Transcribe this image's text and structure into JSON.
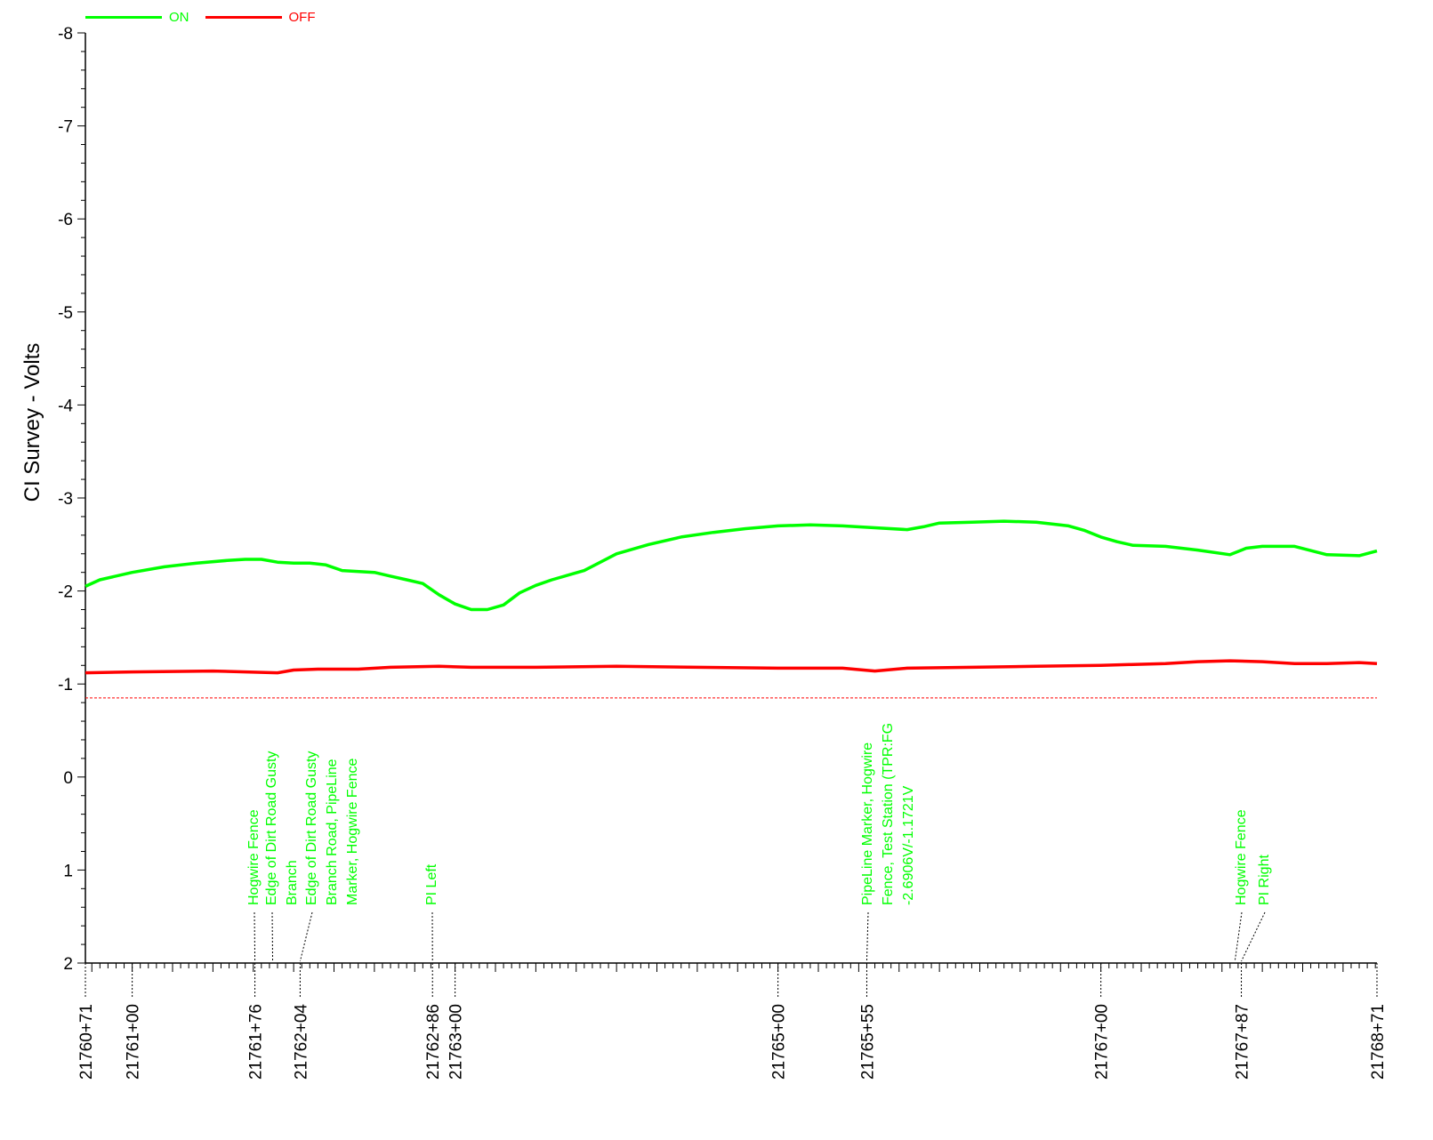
{
  "chart_data": {
    "type": "line",
    "title": "",
    "ylabel": "CI Survey - Volts",
    "xlabel": "",
    "x_unit": "stationing",
    "xlim": [
      2176071,
      2176871
    ],
    "ylim": [
      2,
      -8
    ],
    "y_inverted": true,
    "y_ticks": [
      -8,
      -7,
      -6,
      -5,
      -4,
      -3,
      -2,
      -1,
      0,
      1,
      2
    ],
    "x_tick_labels": [
      {
        "x": 2176071,
        "label": "21760+71"
      },
      {
        "x": 2176100,
        "label": "21761+00"
      },
      {
        "x": 2176176,
        "label": "21761+76"
      },
      {
        "x": 2176204,
        "label": "21762+04"
      },
      {
        "x": 2176286,
        "label": "21762+86"
      },
      {
        "x": 2176300,
        "label": "21763+00"
      },
      {
        "x": 2176500,
        "label": "21765+00"
      },
      {
        "x": 2176555,
        "label": "21765+55"
      },
      {
        "x": 2176700,
        "label": "21767+00"
      },
      {
        "x": 2176787,
        "label": "21767+87"
      },
      {
        "x": 2176871,
        "label": "21768+71"
      }
    ],
    "legend": {
      "placement": "top-left"
    },
    "criteria_line": {
      "y": -0.85,
      "color": "#ff0000",
      "style": "dashed"
    },
    "series": [
      {
        "name": "ON",
        "color": "#00ff00",
        "x": [
          2176071,
          2176080,
          2176100,
          2176120,
          2176140,
          2176160,
          2176170,
          2176180,
          2176190,
          2176200,
          2176210,
          2176220,
          2176230,
          2176250,
          2176260,
          2176270,
          2176280,
          2176290,
          2176300,
          2176310,
          2176320,
          2176330,
          2176340,
          2176350,
          2176360,
          2176380,
          2176400,
          2176420,
          2176440,
          2176460,
          2176480,
          2176500,
          2176520,
          2176540,
          2176560,
          2176580,
          2176590,
          2176600,
          2176620,
          2176640,
          2176660,
          2176680,
          2176690,
          2176700,
          2176710,
          2176720,
          2176740,
          2176760,
          2176780,
          2176790,
          2176800,
          2176820,
          2176840,
          2176860,
          2176871
        ],
        "y": [
          -2.05,
          -2.12,
          -2.2,
          -2.26,
          -2.3,
          -2.33,
          -2.34,
          -2.34,
          -2.31,
          -2.3,
          -2.3,
          -2.28,
          -2.22,
          -2.2,
          -2.16,
          -2.12,
          -2.08,
          -1.96,
          -1.86,
          -1.8,
          -1.8,
          -1.85,
          -1.98,
          -2.06,
          -2.12,
          -2.22,
          -2.4,
          -2.5,
          -2.58,
          -2.63,
          -2.67,
          -2.7,
          -2.71,
          -2.7,
          -2.68,
          -2.66,
          -2.69,
          -2.73,
          -2.74,
          -2.75,
          -2.74,
          -2.7,
          -2.65,
          -2.58,
          -2.53,
          -2.49,
          -2.48,
          -2.44,
          -2.39,
          -2.46,
          -2.48,
          -2.48,
          -2.39,
          -2.38,
          -2.43
        ]
      },
      {
        "name": "OFF",
        "color": "#ff0000",
        "x": [
          2176071,
          2176100,
          2176150,
          2176190,
          2176200,
          2176215,
          2176240,
          2176260,
          2176290,
          2176310,
          2176350,
          2176400,
          2176450,
          2176500,
          2176540,
          2176560,
          2176580,
          2176620,
          2176660,
          2176700,
          2176720,
          2176740,
          2176760,
          2176780,
          2176800,
          2176820,
          2176840,
          2176860,
          2176871
        ],
        "y": [
          -1.12,
          -1.13,
          -1.14,
          -1.12,
          -1.15,
          -1.16,
          -1.16,
          -1.18,
          -1.19,
          -1.18,
          -1.18,
          -1.19,
          -1.18,
          -1.17,
          -1.17,
          -1.14,
          -1.17,
          -1.18,
          -1.19,
          -1.2,
          -1.21,
          -1.22,
          -1.24,
          -1.25,
          -1.24,
          -1.22,
          -1.22,
          -1.23,
          -1.22
        ]
      }
    ],
    "annotations": [
      {
        "x": 2176176,
        "text_lines": [
          "Hogwire Fence"
        ]
      },
      {
        "x": 2176187,
        "text_lines": [
          "Edge of Dirt Road Gusty",
          "Branch"
        ]
      },
      {
        "x": 2176204,
        "text_lines": [
          "Edge of Dirt Road Gusty",
          "Branch Road, PipeLine",
          "Marker, Hogwire Fence"
        ]
      },
      {
        "x": 2176286,
        "text_lines": [
          "PI Left"
        ]
      },
      {
        "x": 2176555,
        "text_lines": [
          "PipeLine Marker, Hogwire",
          "Fence, Test Station (TPR:FG",
          "-2.6906V/-1.1721V"
        ]
      },
      {
        "x": 2176783,
        "text_lines": [
          "Hogwire Fence"
        ]
      },
      {
        "x": 2176787,
        "text_lines": [
          "PI Right"
        ]
      }
    ]
  }
}
